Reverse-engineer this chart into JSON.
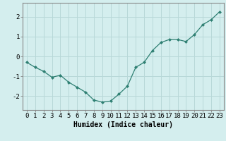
{
  "x": [
    0,
    1,
    2,
    3,
    4,
    5,
    6,
    7,
    8,
    9,
    10,
    11,
    12,
    13,
    14,
    15,
    16,
    17,
    18,
    19,
    20,
    21,
    22,
    23
  ],
  "y": [
    -0.3,
    -0.55,
    -0.75,
    -1.05,
    -0.95,
    -1.3,
    -1.55,
    -1.8,
    -2.2,
    -2.3,
    -2.25,
    -1.9,
    -1.5,
    -0.55,
    -0.3,
    0.3,
    0.7,
    0.85,
    0.85,
    0.75,
    1.1,
    1.6,
    1.85,
    2.25
  ],
  "line_color": "#2e7f72",
  "marker": "D",
  "marker_size": 2.0,
  "bg_color": "#d4eeee",
  "grid_color": "#b8d8d8",
  "axis_color": "#888888",
  "xlabel": "Humidex (Indice chaleur)",
  "xlabel_fontsize": 7,
  "tick_fontsize": 6.5,
  "ylim": [
    -2.7,
    2.7
  ],
  "yticks": [
    -2,
    -1,
    0,
    1,
    2
  ],
  "xticks": [
    0,
    1,
    2,
    3,
    4,
    5,
    6,
    7,
    8,
    9,
    10,
    11,
    12,
    13,
    14,
    15,
    16,
    17,
    18,
    19,
    20,
    21,
    22,
    23
  ],
  "linewidth": 0.9
}
